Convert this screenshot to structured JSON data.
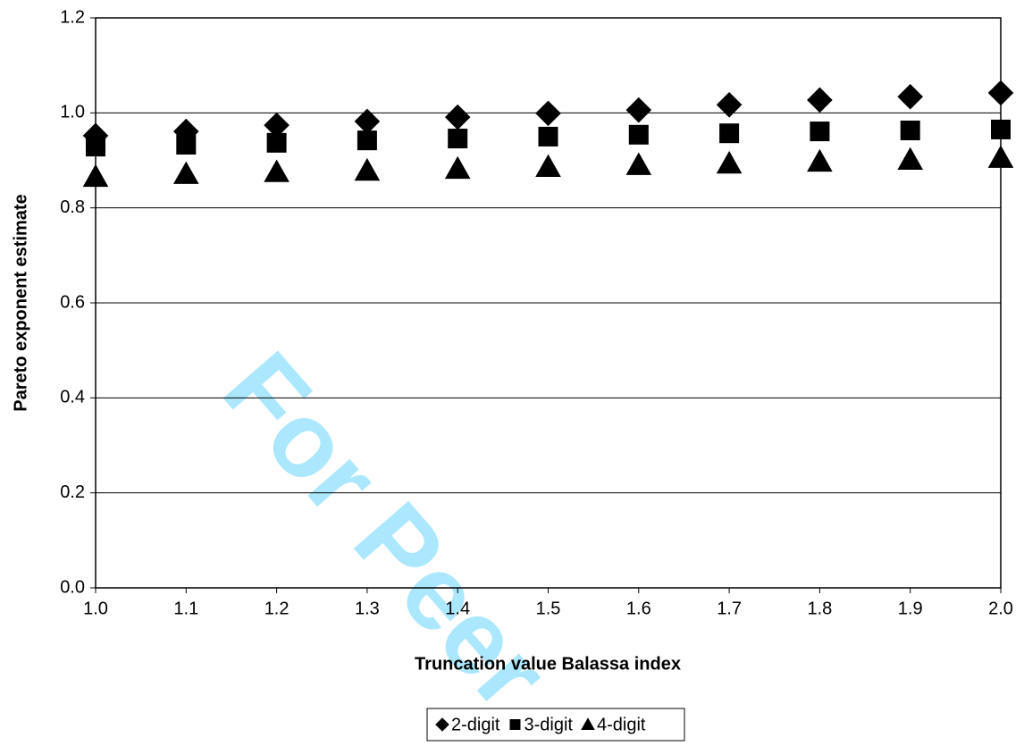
{
  "chart_data": {
    "type": "scatter",
    "watermark": "For Peer",
    "x_label": "Truncation value Balassa index",
    "y_label": "Pareto exponent estimate",
    "x": [
      1.0,
      1.1,
      1.2,
      1.3,
      1.4,
      1.5,
      1.6,
      1.7,
      1.8,
      1.9,
      2.0
    ],
    "series": [
      {
        "name": "2-digit",
        "color": "#000000",
        "marker": "diamond",
        "values": [
          0.952,
          0.961,
          0.974,
          0.982,
          0.991,
          0.999,
          1.006,
          1.017,
          1.027,
          1.034,
          1.042
        ]
      },
      {
        "name": "3-digit",
        "color": "#000000",
        "marker": "square",
        "values": [
          0.929,
          0.933,
          0.937,
          0.942,
          0.946,
          0.95,
          0.954,
          0.957,
          0.961,
          0.963,
          0.965
        ]
      },
      {
        "name": "4-digit",
        "color": "#000000",
        "marker": "triangle",
        "values": [
          0.865,
          0.871,
          0.875,
          0.878,
          0.882,
          0.886,
          0.89,
          0.893,
          0.897,
          0.901,
          0.905
        ]
      }
    ],
    "xlim": [
      1.0,
      2.0
    ],
    "ylim": [
      0.0,
      1.2
    ],
    "xticks": [
      {
        "value": 1.0,
        "label": "1.0"
      },
      1.1,
      1.2,
      1.3,
      1.4,
      1.5,
      1.6,
      1.7,
      1.8,
      1.9,
      {
        "value": 2.0,
        "label": "2.0"
      }
    ],
    "yticks": [
      {
        "value": 0.0,
        "label": "0.0"
      },
      0.2,
      0.4,
      0.6,
      0.8,
      {
        "value": 1.0,
        "label": "1.0"
      },
      1.2
    ],
    "grid": true,
    "legend": "bottom"
  }
}
